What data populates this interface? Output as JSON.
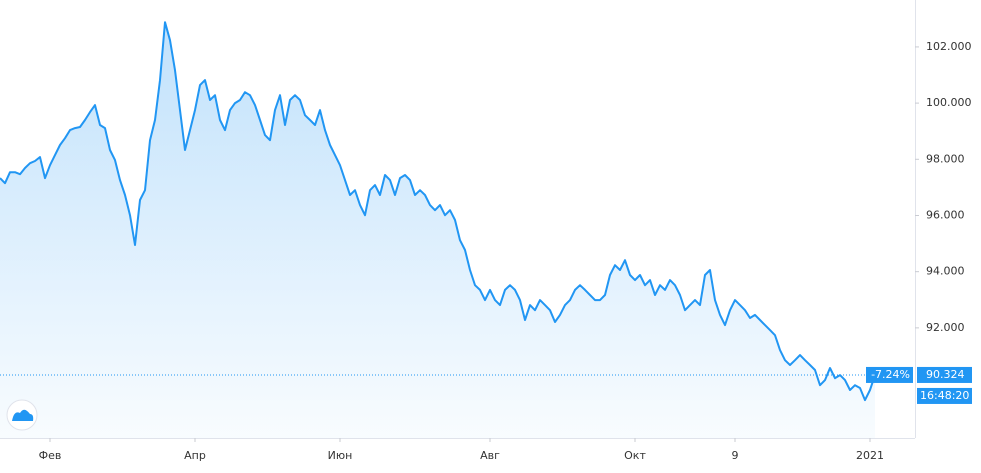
{
  "chart_data": {
    "type": "area",
    "values": [
      97.33,
      97.15,
      97.54,
      97.54,
      97.47,
      97.69,
      97.86,
      97.94,
      98.08,
      97.33,
      97.79,
      98.15,
      98.51,
      98.75,
      99.04,
      99.11,
      99.15,
      99.4,
      99.68,
      99.93,
      99.22,
      99.11,
      98.33,
      97.97,
      97.26,
      96.73,
      96.01,
      94.95,
      96.55,
      96.9,
      98.68,
      99.4,
      100.82,
      102.88,
      102.24,
      101.17,
      99.75,
      98.33,
      99.04,
      99.75,
      100.64,
      100.82,
      100.11,
      100.28,
      99.4,
      99.04,
      99.75,
      100.0,
      100.11,
      100.39,
      100.28,
      99.93,
      99.4,
      98.86,
      98.68,
      99.75,
      100.28,
      99.22,
      100.11,
      100.28,
      100.11,
      99.57,
      99.4,
      99.22,
      99.75,
      99.04,
      98.51,
      98.15,
      97.79,
      97.26,
      96.73,
      96.9,
      96.37,
      96.01,
      96.9,
      97.08,
      96.73,
      97.44,
      97.26,
      96.73,
      97.33,
      97.44,
      97.26,
      96.73,
      96.9,
      96.73,
      96.37,
      96.19,
      96.37,
      96.01,
      96.19,
      95.84,
      95.12,
      94.77,
      94.06,
      93.52,
      93.35,
      92.99,
      93.35,
      92.99,
      92.81,
      93.35,
      93.52,
      93.35,
      92.99,
      92.28,
      92.81,
      92.63,
      92.99,
      92.81,
      92.63,
      92.21,
      92.46,
      92.81,
      92.99,
      93.35,
      93.52,
      93.35,
      93.17,
      92.99,
      92.99,
      93.17,
      93.88,
      94.23,
      94.06,
      94.41,
      93.88,
      93.7,
      93.88,
      93.52,
      93.7,
      93.17,
      93.52,
      93.35,
      93.7,
      93.52,
      93.17,
      92.63,
      92.81,
      92.99,
      92.81,
      93.88,
      94.06,
      92.99,
      92.46,
      92.1,
      92.63,
      92.99,
      92.81,
      92.63,
      92.35,
      92.46,
      92.28,
      92.1,
      91.92,
      91.74,
      91.21,
      90.85,
      90.68,
      90.85,
      91.03,
      90.85,
      90.68,
      90.5,
      89.96,
      90.14,
      90.57,
      90.21,
      90.32,
      90.14,
      89.79,
      89.96,
      89.86,
      89.43,
      89.79,
      90.324
    ],
    "color": "#2196f3",
    "xlim": [
      0,
      183
    ],
    "xticks": [
      {
        "value": 10,
        "label": "Фев"
      },
      {
        "value": 39,
        "label": "Апр"
      },
      {
        "value": 68,
        "label": "Июн"
      },
      {
        "value": 98,
        "label": "Авг"
      },
      {
        "value": 127,
        "label": "Окт"
      },
      {
        "value": 147,
        "label": "9"
      },
      {
        "value": 174,
        "label": "2021"
      }
    ],
    "ylim": [
      88.08,
      103.67
    ],
    "yticks": [
      {
        "value": 92,
        "label": "92.000"
      },
      {
        "value": 94,
        "label": "94.000"
      },
      {
        "value": 96,
        "label": "96.000"
      },
      {
        "value": 98,
        "label": "98.000"
      },
      {
        "value": 100,
        "label": "100.000"
      },
      {
        "value": 102,
        "label": "102.000"
      }
    ],
    "current_price": 90.324,
    "change": "-7.24%",
    "time": "16:48:20"
  }
}
